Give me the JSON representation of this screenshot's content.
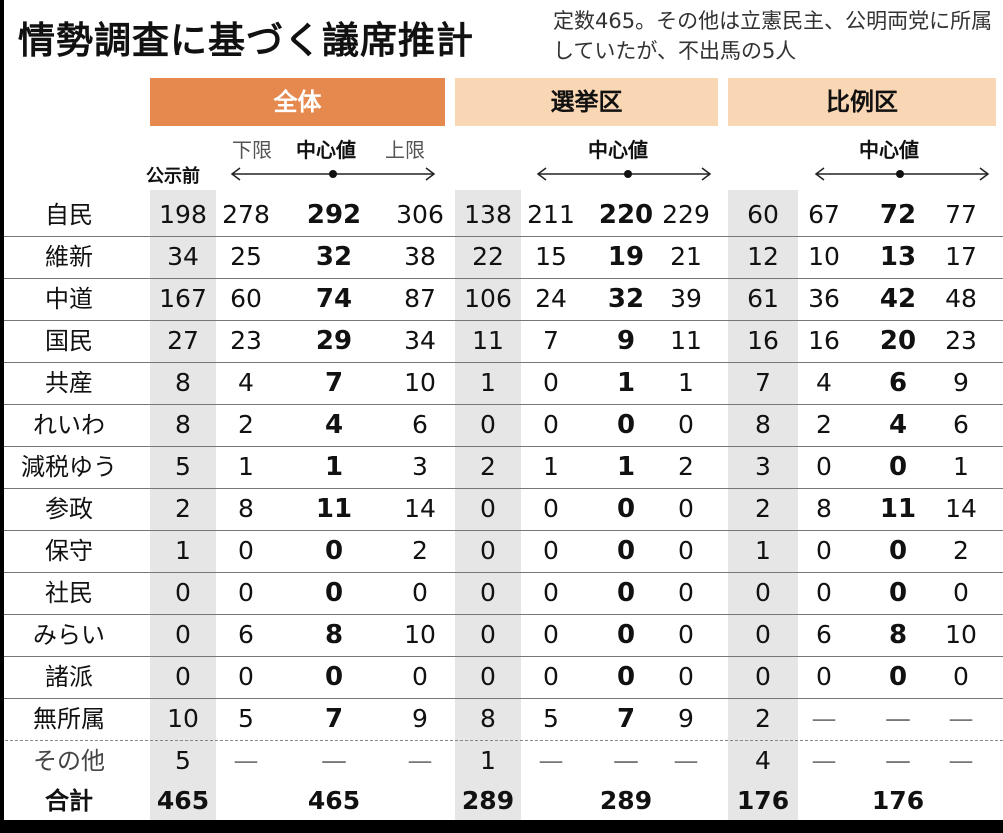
{
  "title": "情勢調査に基づく議席推計",
  "note": "定数465。その他は立憲民主、公明両党に所属していたが、不出馬の5人",
  "groups": [
    "全体",
    "選挙区",
    "比例区"
  ],
  "sub": {
    "before": "公示前",
    "lower": "下限",
    "center": "中心値",
    "upper": "上限"
  },
  "rows": [
    {
      "party": "自民",
      "values": [
        "198",
        "278",
        "292",
        "306",
        "138",
        "211",
        "220",
        "229",
        "60",
        "67",
        "72",
        "77"
      ]
    },
    {
      "party": "維新",
      "values": [
        "34",
        "25",
        "32",
        "38",
        "22",
        "15",
        "19",
        "21",
        "12",
        "10",
        "13",
        "17"
      ]
    },
    {
      "party": "中道",
      "values": [
        "167",
        "60",
        "74",
        "87",
        "106",
        "24",
        "32",
        "39",
        "61",
        "36",
        "42",
        "48"
      ]
    },
    {
      "party": "国民",
      "values": [
        "27",
        "23",
        "29",
        "34",
        "11",
        "7",
        "9",
        "11",
        "16",
        "16",
        "20",
        "23"
      ]
    },
    {
      "party": "共産",
      "values": [
        "8",
        "4",
        "7",
        "10",
        "1",
        "0",
        "1",
        "1",
        "7",
        "4",
        "6",
        "9"
      ]
    },
    {
      "party": "れいわ",
      "values": [
        "8",
        "2",
        "4",
        "6",
        "0",
        "0",
        "0",
        "0",
        "8",
        "2",
        "4",
        "6"
      ]
    },
    {
      "party": "減税ゆう",
      "values": [
        "5",
        "1",
        "1",
        "3",
        "2",
        "1",
        "1",
        "2",
        "3",
        "0",
        "0",
        "1"
      ]
    },
    {
      "party": "参政",
      "values": [
        "2",
        "8",
        "11",
        "14",
        "0",
        "0",
        "0",
        "0",
        "2",
        "8",
        "11",
        "14"
      ]
    },
    {
      "party": "保守",
      "values": [
        "1",
        "0",
        "0",
        "2",
        "0",
        "0",
        "0",
        "0",
        "1",
        "0",
        "0",
        "2"
      ]
    },
    {
      "party": "社民",
      "values": [
        "0",
        "0",
        "0",
        "0",
        "0",
        "0",
        "0",
        "0",
        "0",
        "0",
        "0",
        "0"
      ]
    },
    {
      "party": "みらい",
      "values": [
        "0",
        "6",
        "8",
        "10",
        "0",
        "0",
        "0",
        "0",
        "0",
        "6",
        "8",
        "10"
      ]
    },
    {
      "party": "諸派",
      "values": [
        "0",
        "0",
        "0",
        "0",
        "0",
        "0",
        "0",
        "0",
        "0",
        "0",
        "0",
        "0"
      ]
    },
    {
      "party": "無所属",
      "values": [
        "10",
        "5",
        "7",
        "9",
        "8",
        "5",
        "7",
        "9",
        "2",
        "—",
        "—",
        "—"
      ]
    },
    {
      "party": "その他",
      "values": [
        "5",
        "—",
        "—",
        "—",
        "1",
        "—",
        "—",
        "—",
        "4",
        "—",
        "—",
        "—"
      ]
    }
  ],
  "total": {
    "label": "合計",
    "values": [
      "465",
      "465",
      "289",
      "289",
      "176",
      "176"
    ]
  }
}
